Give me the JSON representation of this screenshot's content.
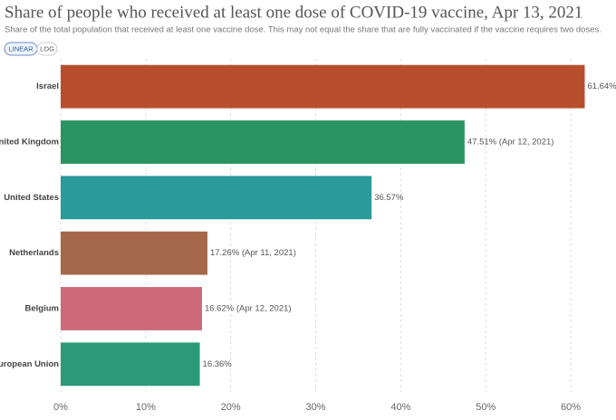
{
  "chart_data": {
    "type": "hbar",
    "title": "Share of people who received at least one dose of COVID-19 vaccine, Apr 13, 2021",
    "subtitle": "Share of the total population that received at least one vaccine dose. This may not equal the share that are fully vaccinated if the vaccine requires two doses.",
    "controls": [
      "LINEAR",
      "LOG"
    ],
    "categories": [
      "Israel",
      "United Kingdom",
      "United States",
      "Netherlands",
      "Belgium",
      "European Union"
    ],
    "values": [
      61.64,
      47.51,
      36.57,
      17.26,
      16.62,
      16.36
    ],
    "value_labels": [
      "61.64%",
      "47.51% (Apr 12, 2021)",
      "36.57%",
      "17.26% (Apr 11, 2021)",
      "16.62% (Apr 12, 2021)",
      "16.36%"
    ],
    "colors": [
      "#b94e2e",
      "#2a9460",
      "#2a9a9a",
      "#a4694a",
      "#cc6a7a",
      "#2a9a78"
    ],
    "xlim": [
      0,
      65
    ],
    "xticks": [
      {
        "value": 0,
        "label": "0%"
      },
      {
        "value": 10,
        "label": "10%"
      },
      {
        "value": 20,
        "label": "20%"
      },
      {
        "value": 30,
        "label": "30%"
      },
      {
        "value": 40,
        "label": "40%"
      },
      {
        "value": 50,
        "label": "50%"
      },
      {
        "value": 60,
        "label": "60%"
      }
    ],
    "grid": true
  }
}
